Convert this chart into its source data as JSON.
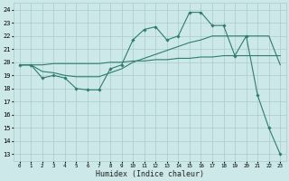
{
  "xlabel": "Humidex (Indice chaleur)",
  "x_ticks": [
    0,
    1,
    2,
    3,
    4,
    5,
    6,
    7,
    8,
    9,
    10,
    11,
    12,
    13,
    14,
    15,
    16,
    17,
    18,
    19,
    20,
    21,
    22,
    23
  ],
  "ylim": [
    12.5,
    24.5
  ],
  "xlim": [
    -0.5,
    23.5
  ],
  "yticks": [
    13,
    14,
    15,
    16,
    17,
    18,
    19,
    20,
    21,
    22,
    23,
    24
  ],
  "bg_color": "#cce8e8",
  "grid_color": "#aacccc",
  "line_color": "#2e7d6e",
  "line1_x": [
    0,
    1,
    2,
    3,
    4,
    5,
    6,
    7,
    8,
    9,
    10,
    11,
    12,
    13,
    14,
    15,
    16,
    17,
    18,
    19,
    20,
    21,
    22,
    23
  ],
  "line1_y": [
    19.8,
    19.8,
    18.8,
    19.0,
    18.8,
    18.0,
    17.9,
    17.9,
    19.5,
    19.8,
    21.7,
    22.5,
    22.7,
    21.7,
    22.0,
    23.8,
    23.8,
    22.8,
    22.8,
    20.5,
    22.0,
    17.5,
    15.0,
    13.0
  ],
  "line2_x": [
    0,
    1,
    2,
    3,
    4,
    5,
    6,
    7,
    8,
    9,
    10,
    11,
    12,
    13,
    14,
    15,
    16,
    17,
    18,
    19,
    20,
    21,
    22,
    23
  ],
  "line2_y": [
    19.8,
    19.8,
    19.8,
    19.9,
    19.9,
    19.9,
    19.9,
    19.9,
    20.0,
    20.0,
    20.1,
    20.1,
    20.2,
    20.2,
    20.3,
    20.3,
    20.4,
    20.4,
    20.5,
    20.5,
    20.5,
    20.5,
    20.5,
    20.5
  ],
  "line3_x": [
    0,
    1,
    2,
    3,
    4,
    5,
    6,
    7,
    8,
    9,
    10,
    11,
    12,
    13,
    14,
    15,
    16,
    17,
    18,
    19,
    20,
    21,
    22,
    23
  ],
  "line3_y": [
    19.8,
    19.8,
    19.3,
    19.2,
    19.0,
    18.9,
    18.9,
    18.9,
    19.2,
    19.5,
    20.0,
    20.3,
    20.6,
    20.9,
    21.2,
    21.5,
    21.7,
    22.0,
    22.0,
    22.0,
    22.0,
    22.0,
    22.0,
    19.8
  ]
}
